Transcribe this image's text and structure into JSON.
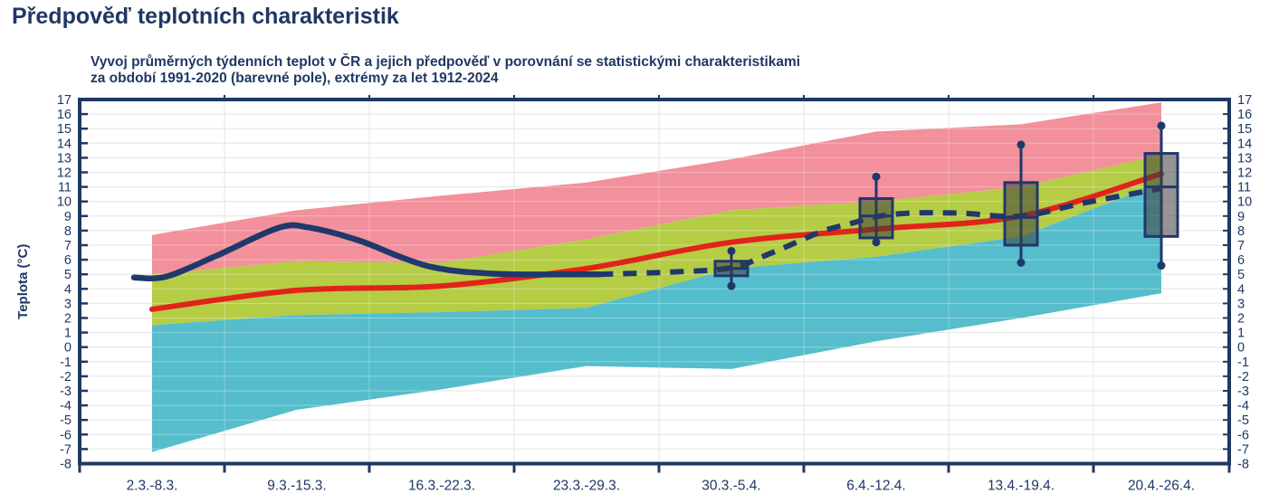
{
  "page": {
    "title": "Předpověď teplotních charakteristik"
  },
  "subtitle": {
    "line1": "Vyvoj průměrných týdenních teplot v ČR a jejich předpověď v porovnání se statistickými charakteristikami",
    "line2": "za období 1991-2020 (barevné pole), extrémy za let 1912-2024"
  },
  "chart_data": {
    "type": "area+line+boxplot",
    "title": "Vyvoj průměrných týdenních teplot v ČR a jejich předpověď v porovnání se statistickými charakteristikami za období 1991-2020 (barevné pole), extrémy za let 1912-2024",
    "categories": [
      "2.3.-8.3.",
      "9.3.-15.3.",
      "16.3.-22.3.",
      "23.3.-29.3.",
      "30.3.-5.4.",
      "6.4.-12.4.",
      "13.4.-19.4.",
      "20.4.-26.4."
    ],
    "xlabel": "",
    "ylabel": "Teplota (°C)",
    "ylim": [
      -8,
      17
    ],
    "yticks": [
      17,
      16,
      15,
      14,
      13,
      12,
      11,
      10,
      9,
      8,
      7,
      6,
      5,
      4,
      3,
      2,
      1,
      0,
      -1,
      -2,
      -3,
      -4,
      -5,
      -6,
      -7,
      -8
    ],
    "grid": true,
    "legend": "none",
    "bands": {
      "max_1912_2024": [
        7.7,
        9.4,
        10.4,
        11.3,
        12.9,
        14.8,
        15.3,
        16.8
      ],
      "upper_normal_1991_2020": [
        5.0,
        5.9,
        5.8,
        7.4,
        9.4,
        10.0,
        11.0,
        13.2
      ],
      "lower_normal_1991_2020": [
        1.5,
        2.2,
        2.4,
        2.7,
        5.4,
        6.2,
        7.6,
        11.3
      ],
      "min_1912_2024": [
        -7.2,
        -4.3,
        -2.9,
        -1.3,
        -1.5,
        0.4,
        2.0,
        3.7
      ]
    },
    "series": [
      {
        "name": "normal-average-1991-2020",
        "style": "solid-red-smooth",
        "values": [
          2.6,
          3.9,
          4.2,
          5.4,
          7.2,
          8.1,
          9.0,
          11.9
        ]
      },
      {
        "name": "observed-weekly-mean",
        "style": "solid-navy-smooth",
        "points_week_value": [
          [
            -0.125,
            4.78
          ],
          [
            0.1,
            4.85
          ],
          [
            0.45,
            6.3
          ],
          [
            0.875,
            8.2
          ],
          [
            1.09,
            8.2
          ],
          [
            1.42,
            7.35
          ],
          [
            1.7,
            6.25
          ],
          [
            1.89,
            5.6
          ],
          [
            2.08,
            5.25
          ],
          [
            2.26,
            5.1
          ],
          [
            2.5,
            5.0
          ],
          [
            3.09,
            5.0
          ]
        ]
      },
      {
        "name": "forecast-weekly-mean",
        "style": "dashed-navy-smooth",
        "points_week_value": [
          [
            3.09,
            5.0
          ],
          [
            3.57,
            5.15
          ],
          [
            4.0,
            5.45
          ],
          [
            4.26,
            6.4
          ],
          [
            4.45,
            7.2
          ],
          [
            4.64,
            8.0
          ],
          [
            4.83,
            8.5
          ],
          [
            5.0,
            8.95
          ],
          [
            5.23,
            9.2
          ],
          [
            5.58,
            9.2
          ],
          [
            6.0,
            9.0
          ],
          [
            6.45,
            9.9
          ],
          [
            7.0,
            10.9
          ]
        ]
      }
    ],
    "boxplots": [
      {
        "week_index": 4,
        "category": "30.3.-5.4.",
        "whisker_low": 4.2,
        "box_low": 4.9,
        "median": 5.4,
        "box_high": 5.9,
        "whisker_high": 6.6
      },
      {
        "week_index": 5,
        "category": "6.4.-12.4.",
        "whisker_low": 7.2,
        "box_low": 7.5,
        "median": 9.0,
        "box_high": 10.2,
        "whisker_high": 11.7
      },
      {
        "week_index": 6,
        "category": "13.4.-19.4.",
        "whisker_low": 5.8,
        "box_low": 7.0,
        "median": 8.9,
        "box_high": 11.3,
        "whisker_high": 13.9
      },
      {
        "week_index": 7,
        "category": "20.4.-26.4.",
        "whisker_low": 5.6,
        "box_low": 7.6,
        "median": 11.0,
        "box_high": 13.3,
        "whisker_high": 15.2
      }
    ],
    "colors": {
      "band_above_normal": "#f2909b",
      "band_normal": "#b5cc45",
      "band_below_normal": "#55bdcb",
      "normal_line": "#e2231a",
      "observed_line": "#20386b",
      "forecast_line": "#20386b",
      "box_fill": "rgba(60,60,60,0.55)",
      "box_border": "#20386b",
      "axis": "#1f3864",
      "grid": "#d9d9d9",
      "text": "#1f3864"
    }
  }
}
